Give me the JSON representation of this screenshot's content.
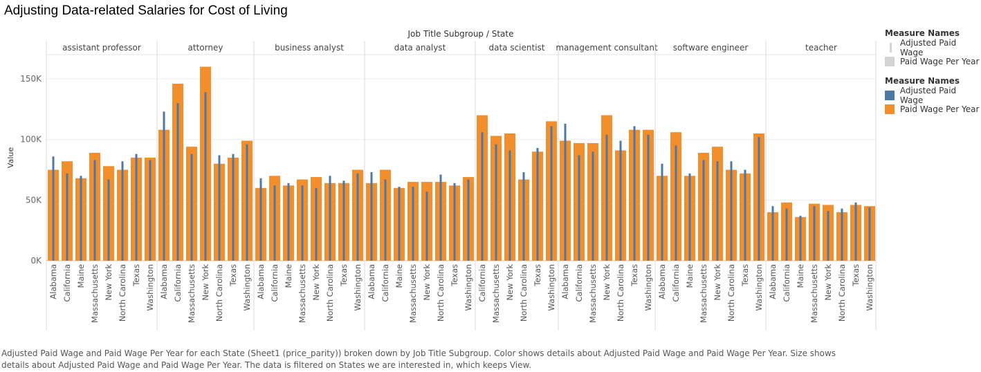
{
  "title": "Adjusting Data-related Salaries for Cost of Living",
  "caption": "Adjusted Paid Wage and Paid Wage Per Year for each State (Sheet1 (price_parity)) broken down by Job Title Subgroup.  Color shows details about Adjusted Paid Wage and Paid Wage Per Year.  Size shows details about Adjusted Paid Wage and Paid Wage Per Year. The data is filtered on States we are interested in, which keeps View.",
  "legend_size": {
    "title": "Measure Names",
    "items": [
      "Adjusted Paid Wage",
      "Paid Wage Per Year"
    ]
  },
  "legend_color": {
    "title": "Measure Names",
    "items": [
      {
        "label": "Adjusted Paid Wage",
        "color": "#4e79a7"
      },
      {
        "label": "Paid Wage Per Year",
        "color": "#f28e2b"
      }
    ]
  },
  "chart_data": {
    "type": "bar",
    "header": "Job Title Subgroup  /  State",
    "ylabel": "Value",
    "ylim": [
      0,
      170000
    ],
    "yticks": [
      0,
      50000,
      100000,
      150000
    ],
    "ytick_labels": [
      "0K",
      "50K",
      "100K",
      "150K"
    ],
    "states": [
      "Alabama",
      "California",
      "Maine",
      "Massachusetts",
      "New York",
      "North Carolina",
      "Texas",
      "Washington"
    ],
    "groups": [
      {
        "name": "assistant professor",
        "adjusted": [
          86000,
          72000,
          70000,
          83000,
          67000,
          82000,
          88000,
          83000
        ],
        "paid": [
          75000,
          82000,
          68000,
          89000,
          78000,
          75000,
          85000,
          85000
        ]
      },
      {
        "name": "attorney",
        "adjusted": [
          123000,
          130000,
          88000,
          139000,
          87000,
          88000,
          96000
        ],
        "paid": [
          108000,
          146000,
          94000,
          160000,
          80000,
          85000,
          99000
        ],
        "states": [
          "Alabama",
          "California",
          "Massachusetts",
          "New York",
          "North Carolina",
          "Texas",
          "Washington"
        ]
      },
      {
        "name": "business analyst",
        "adjusted": [
          68000,
          62000,
          64000,
          62000,
          60000,
          70000,
          66000,
          72000
        ],
        "paid": [
          60000,
          70000,
          62000,
          67000,
          69000,
          64000,
          64000,
          75000
        ]
      },
      {
        "name": "data analyst",
        "adjusted": [
          73000,
          67000,
          61000,
          61000,
          57000,
          71000,
          64000,
          67000
        ],
        "paid": [
          64000,
          75000,
          60000,
          65000,
          65000,
          65000,
          62000,
          69000
        ]
      },
      {
        "name": "data scientist",
        "adjusted": [
          106000,
          96000,
          91000,
          73000,
          93000,
          111000
        ],
        "paid": [
          120000,
          103000,
          105000,
          67000,
          90000,
          115000
        ],
        "states": [
          "California",
          "Massachusetts",
          "New York",
          "North Carolina",
          "Texas",
          "Washington"
        ]
      },
      {
        "name": "management consultant",
        "adjusted": [
          113000,
          87000,
          90000,
          104000,
          99000,
          111000,
          104000
        ],
        "paid": [
          99000,
          97000,
          97000,
          120000,
          91000,
          108000,
          108000
        ],
        "states": [
          "Alabama",
          "California",
          "Massachusetts",
          "New York",
          "North Carolina",
          "Texas",
          "Washington"
        ]
      },
      {
        "name": "software engineer",
        "adjusted": [
          80000,
          95000,
          72000,
          83000,
          82000,
          82000,
          75000,
          102000
        ],
        "paid": [
          70000,
          106000,
          70000,
          89000,
          94000,
          75000,
          72000,
          105000
        ]
      },
      {
        "name": "teacher",
        "adjusted": [
          45000,
          43000,
          37000,
          45000,
          41000,
          43000,
          48000,
          44000
        ],
        "paid": [
          40000,
          48000,
          36000,
          47000,
          46000,
          40000,
          46000,
          45000
        ]
      }
    ],
    "colors": {
      "adjusted": "#4e79a7",
      "paid": "#f28e2b"
    },
    "grid": true,
    "legend": "right"
  }
}
